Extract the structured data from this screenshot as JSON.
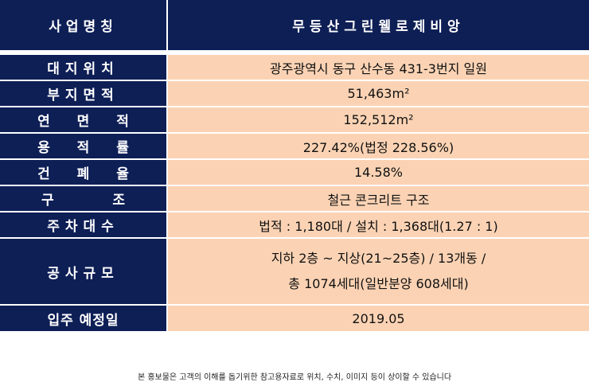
{
  "header": {
    "label": "사업명칭",
    "value": "무등산그린웰로제비앙"
  },
  "rows": [
    {
      "label": "대지위치",
      "value": "광주광역시 동구 산수동 431-3번지 일원"
    },
    {
      "label": "부지면적",
      "value": "51,463m²"
    },
    {
      "label": "연 면 적",
      "value": "152,512m²"
    },
    {
      "label": "용 적 률",
      "value": "227.42%(법정 228.56%)"
    },
    {
      "label": "건 폐 율",
      "value": "14.58%"
    },
    {
      "label": "구   조",
      "value": "철근 콘크리트 구조"
    },
    {
      "label": "주차대수",
      "value": "법적 : 1,180대 / 설치 : 1,368대(1.27 : 1)"
    },
    {
      "label": "공사규모",
      "value_line1": "지하 2층 ~ 지상(21~25층) / 13개동 /",
      "value_line2": "총 1074세대(일반분양 608세대)"
    },
    {
      "label": "입주 예정일",
      "value": "2019.05"
    }
  ],
  "footnote": "본 홍보물은 고객의 이해를 돕기위한 참고용자료로 위치, 수치, 이미지 등이 상이할 수 있습니다",
  "colors": {
    "navy": "#0e1f56",
    "peach": "#fbd3b4",
    "white": "#ffffff"
  }
}
